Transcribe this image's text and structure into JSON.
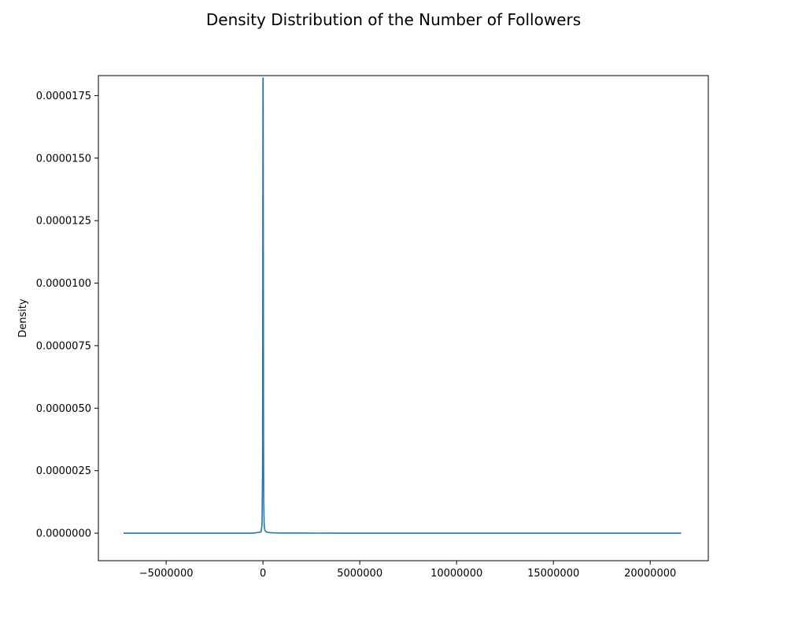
{
  "chart_data": {
    "type": "line",
    "title": "Density Distribution of the Number of Followers",
    "xlabel": "",
    "ylabel": "Density",
    "xlim": [
      -8500000,
      23000000
    ],
    "ylim": [
      -1.1e-06,
      1.83e-05
    ],
    "grid": false,
    "legend": "none",
    "x_ticks": [
      {
        "value": -5000000,
        "label": "−5000000"
      },
      {
        "value": 0,
        "label": "0"
      },
      {
        "value": 5000000,
        "label": "5000000"
      },
      {
        "value": 10000000,
        "label": "10000000"
      },
      {
        "value": 15000000,
        "label": "15000000"
      },
      {
        "value": 20000000,
        "label": "20000000"
      }
    ],
    "y_ticks": [
      {
        "value": 0,
        "label": "0.0000000"
      },
      {
        "value": 2.5e-06,
        "label": "0.0000025"
      },
      {
        "value": 5e-06,
        "label": "0.0000050"
      },
      {
        "value": 7.5e-06,
        "label": "0.0000075"
      },
      {
        "value": 1e-05,
        "label": "0.0000100"
      },
      {
        "value": 1.25e-05,
        "label": "0.0000125"
      },
      {
        "value": 1.5e-05,
        "label": "0.0000150"
      },
      {
        "value": 1.75e-05,
        "label": "0.0000175"
      }
    ],
    "series": [
      {
        "color": "#1f77b4",
        "x": [
          -7200000,
          -3000000,
          -500000,
          -100000,
          -50000,
          -20000,
          0,
          10000,
          20000,
          30000,
          40000,
          60000,
          80000,
          100000,
          150000,
          250000,
          400000,
          700000,
          1000000,
          2000000,
          3000000,
          3400000,
          4000000,
          6000000,
          10000000,
          15000000,
          21600000
        ],
        "y": [
          0,
          0,
          0,
          5e-08,
          3e-07,
          2.5e-06,
          1.82e-05,
          1.82e-05,
          1.15e-05,
          4e-06,
          1.2e-06,
          4e-07,
          2e-07,
          1.2e-07,
          6e-08,
          3e-08,
          2e-08,
          1e-08,
          5e-09,
          3e-09,
          2e-09,
          4e-09,
          1e-09,
          0,
          0,
          0,
          0
        ]
      }
    ]
  }
}
